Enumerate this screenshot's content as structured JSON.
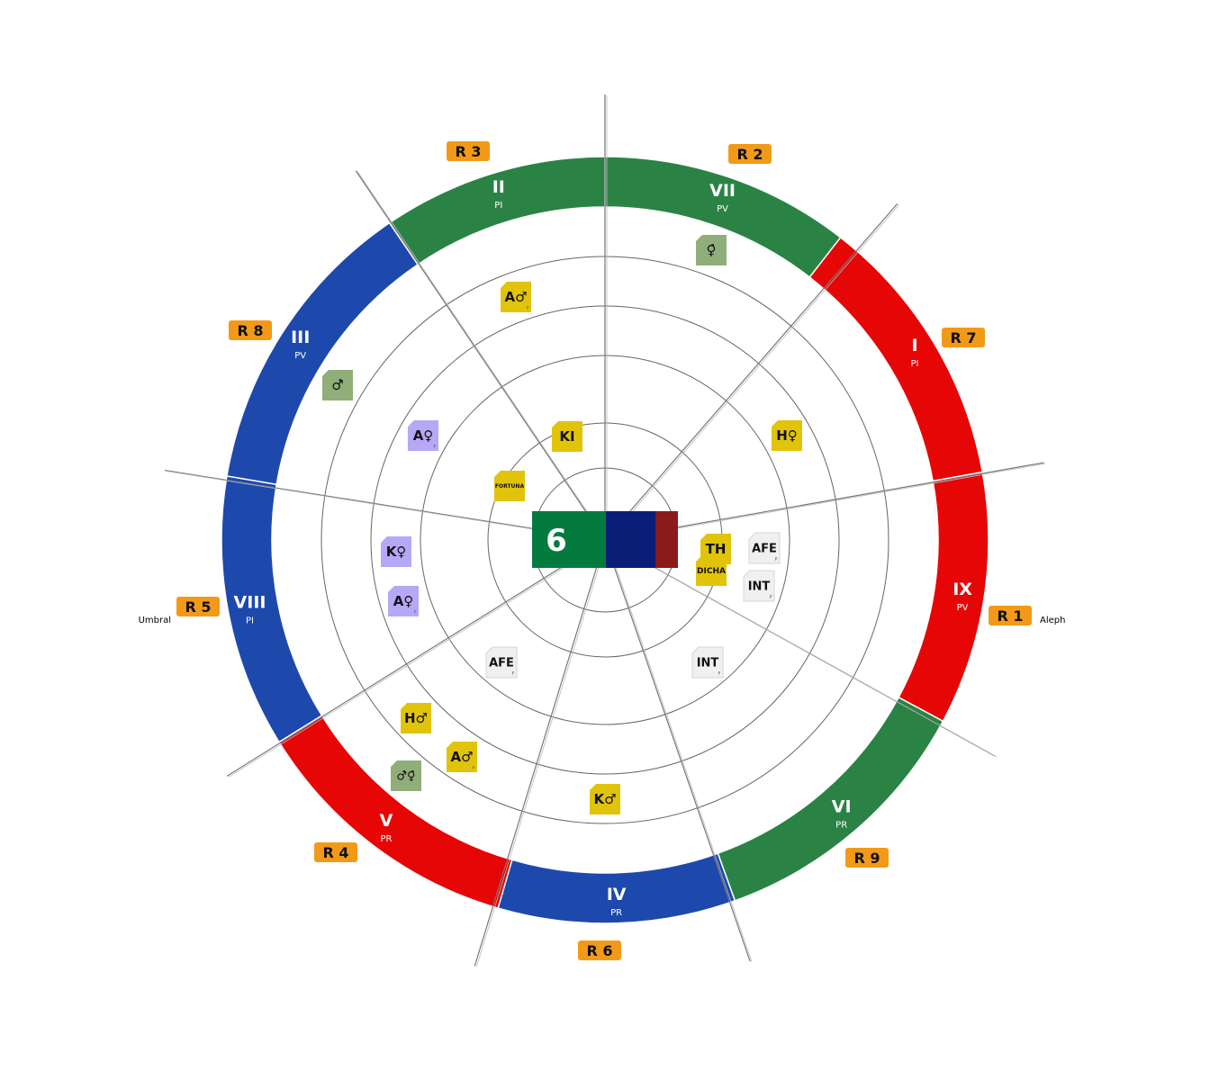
{
  "wheel": {
    "center_value": "6",
    "center_colors": [
      "#037b3f",
      "#0a1e78",
      "#8b1a1a"
    ],
    "segments": [
      {
        "numeral": "II",
        "code": "PI",
        "color": "#2a8345"
      },
      {
        "numeral": "VII",
        "code": "PV",
        "color": "#2a8345"
      },
      {
        "numeral": "I",
        "code": "PI",
        "color": "#e60606"
      },
      {
        "numeral": "IX",
        "code": "PV",
        "color": "#e60606"
      },
      {
        "numeral": "VI",
        "code": "PR",
        "color": "#2a8345"
      },
      {
        "numeral": "IV",
        "code": "PR",
        "color": "#1d49ad"
      },
      {
        "numeral": "V",
        "code": "PR",
        "color": "#e60606"
      },
      {
        "numeral": "VIII",
        "code": "PI",
        "color": "#1d49ad"
      },
      {
        "numeral": "III",
        "code": "PV",
        "color": "#1d49ad"
      }
    ],
    "r_labels": [
      "R 3",
      "R 2",
      "R 7",
      "R 1",
      "R 9",
      "R 6",
      "R 4",
      "R 5",
      "R 8"
    ],
    "side_labels": {
      "right": "Aleph",
      "left": "Umbral"
    },
    "tokens": [
      {
        "text": "♀̇",
        "sub": "",
        "color": "#8fae7a"
      },
      {
        "text": "A♂",
        "sub": "P",
        "color": "#e1c40a"
      },
      {
        "text": "♂̇",
        "sub": "",
        "color": "#8fae7a"
      },
      {
        "text": "A♀",
        "sub": "F",
        "color": "#b7a7f7"
      },
      {
        "text": "KI",
        "sub": "",
        "color": "#e1c40a"
      },
      {
        "text": "FORTUNA",
        "sub": "",
        "color": "#e1c40a"
      },
      {
        "text": "H♀",
        "sub": "",
        "color": "#e1c40a"
      },
      {
        "text": "K♀",
        "sub": "",
        "color": "#b7a7f7"
      },
      {
        "text": "A♀",
        "sub": "P",
        "color": "#b7a7f7"
      },
      {
        "text": "AFE",
        "sub": "F",
        "color": "#f0f0f0"
      },
      {
        "text": "INT",
        "sub": "F",
        "color": "#f0f0f0"
      },
      {
        "text": "DICHA",
        "sub": "",
        "color": "#e1c40a"
      },
      {
        "text": "TH",
        "sub": "",
        "color": "#e1c40a"
      },
      {
        "text": "AFE",
        "sub": "P",
        "color": "#f0f0f0"
      },
      {
        "text": "INT",
        "sub": "P",
        "color": "#f0f0f0"
      },
      {
        "text": "H♂",
        "sub": "",
        "color": "#e1c40a"
      },
      {
        "text": "A♂",
        "sub": "F",
        "color": "#e1c40a"
      },
      {
        "text": "♂̇♀̇",
        "sub": "",
        "color": "#8fae7a"
      },
      {
        "text": "K♂",
        "sub": "",
        "color": "#e1c40a"
      }
    ]
  }
}
